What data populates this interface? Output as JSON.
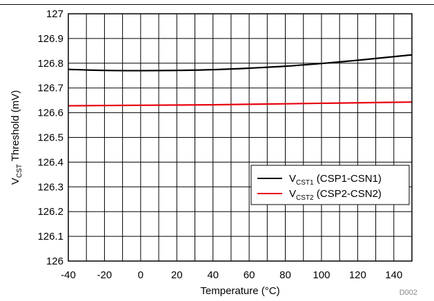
{
  "chart_data": {
    "type": "line",
    "title": "",
    "xlabel": "Temperature (°C)",
    "ylabel": {
      "prefix": "V",
      "sub": "CST",
      "suffix": " Threshold (mV)"
    },
    "xlim": [
      -40,
      150
    ],
    "ylim": [
      126,
      127
    ],
    "x_ticks": [
      -40,
      -20,
      0,
      20,
      40,
      60,
      80,
      100,
      120,
      140
    ],
    "x_tick_labels": [
      "-40",
      "-20",
      "0",
      "20",
      "40",
      "60",
      "80",
      "100",
      "120",
      "140"
    ],
    "y_ticks": [
      126,
      126.1,
      126.2,
      126.3,
      126.4,
      126.5,
      126.6,
      126.7,
      126.8,
      126.9,
      127
    ],
    "y_tick_labels": [
      "126",
      "126.1",
      "126.2",
      "126.3",
      "126.4",
      "126.5",
      "126.6",
      "126.7",
      "126.8",
      "126.9",
      "127"
    ],
    "grid": true,
    "legend_position": "center-right",
    "x": [
      -40,
      -20,
      0,
      20,
      40,
      60,
      80,
      100,
      120,
      150
    ],
    "series": [
      {
        "name": "VCST1 (CSP1-CSN1)",
        "legend": {
          "prefix": "V",
          "sub": "CST1",
          "suffix": " (CSP1-CSN1)"
        },
        "color": "#000000",
        "values": [
          126.775,
          126.771,
          126.77,
          126.771,
          126.774,
          126.78,
          126.788,
          126.799,
          126.812,
          126.834
        ]
      },
      {
        "name": "VCST2 (CSP2-CSN2)",
        "legend": {
          "prefix": "V",
          "sub": "CST2",
          "suffix": " (CSP2-CSN2)"
        },
        "color": "#e8000b",
        "values": [
          126.628,
          126.629,
          126.63,
          126.631,
          126.632,
          126.634,
          126.636,
          126.638,
          126.64,
          126.643
        ]
      }
    ],
    "figure_id": "D002"
  }
}
